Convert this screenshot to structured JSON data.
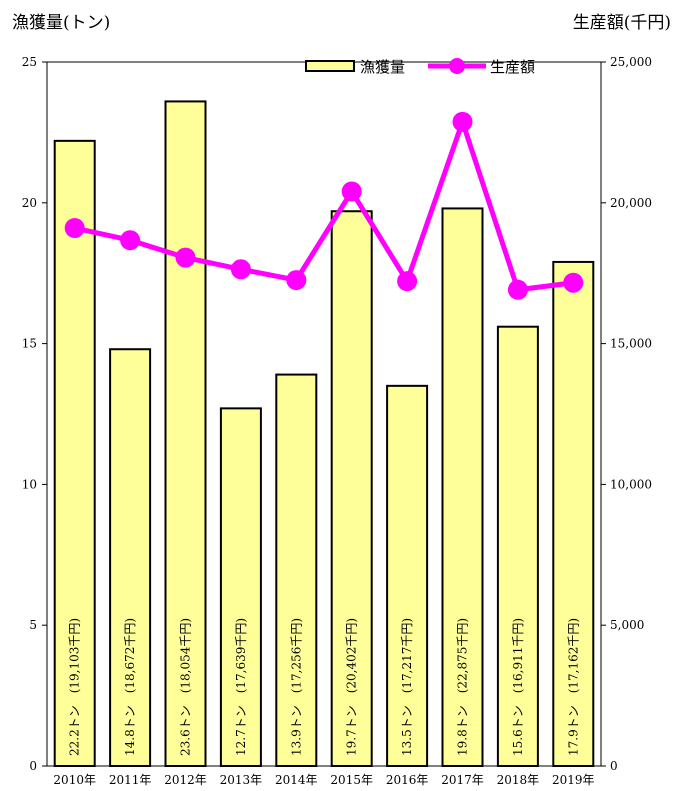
{
  "chart_data": {
    "type": "bar",
    "categories": [
      "2010年",
      "2011年",
      "2012年",
      "2013年",
      "2014年",
      "2015年",
      "2016年",
      "2017年",
      "2018年",
      "2019年"
    ],
    "series": [
      {
        "name": "漁獲量",
        "type": "bar",
        "axis": "left",
        "values": [
          22.2,
          14.8,
          23.6,
          12.7,
          13.9,
          19.7,
          13.5,
          19.8,
          15.6,
          17.9
        ],
        "color": "#ffff99"
      },
      {
        "name": "生産額",
        "type": "line",
        "axis": "right",
        "values": [
          19103,
          18672,
          18054,
          17639,
          17256,
          20402,
          17217,
          22875,
          16911,
          17162
        ],
        "color": "#ff00ff"
      }
    ],
    "bar_labels": [
      "22.2トン　(19,103千円)",
      "14.8トン　(18,672千円)",
      "23.6トン　(18,054千円)",
      "12.7トン　(17,639千円)",
      "13.9トン　(17,256千円)",
      "19.7トン　(20,402千円)",
      "13.5トン　(17,217千円)",
      "19.8トン　(22,875千円)",
      "15.6トン　(16,911千円)",
      "17.9トン　(17,162千円)"
    ],
    "ylabel": "漁獲量(トン)",
    "y2label": "生産額(千円)",
    "ylim": [
      0,
      25
    ],
    "y2lim": [
      0,
      25000
    ],
    "yticks": [
      "0",
      "5",
      "10",
      "15",
      "20",
      "25"
    ],
    "y2ticks": [
      "0",
      "5,000",
      "10,000",
      "15,000",
      "20,000",
      "25,000"
    ],
    "legend": {
      "position": "top-right"
    },
    "grid": false
  }
}
